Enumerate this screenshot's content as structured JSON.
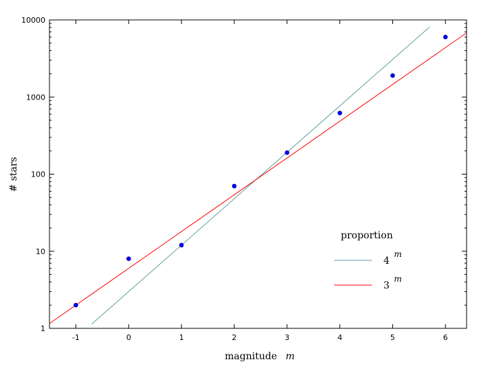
{
  "chart_data": {
    "type": "scatter",
    "xlabel": "magnitude",
    "xlabel_var": "m",
    "ylabel": "# stars",
    "xlim": [
      -1.5,
      6.4
    ],
    "ylim": [
      1,
      10000
    ],
    "yscale": "log",
    "x_ticks": [
      -1,
      0,
      1,
      2,
      3,
      4,
      5,
      6
    ],
    "x_tick_labels": [
      "-1",
      "0",
      "1",
      "2",
      "3",
      "4",
      "5",
      "6"
    ],
    "y_ticks": [
      1,
      10,
      100,
      1000,
      10000
    ],
    "y_tick_labels": [
      "1",
      "10",
      "100",
      "1000",
      "10000"
    ],
    "grid": false,
    "points": {
      "color": "#0000ff",
      "x": [
        -1,
        0,
        1,
        2,
        3,
        4,
        5,
        6
      ],
      "y": [
        2,
        8,
        12,
        70,
        190,
        620,
        1900,
        6000
      ]
    },
    "legend": {
      "title": "proportion",
      "placement": "lower-right",
      "entries": [
        {
          "base": "4",
          "exponent": "m",
          "color": "#5f9ea0"
        },
        {
          "base": "3",
          "exponent": "m",
          "color": "#ff0000"
        }
      ]
    },
    "lines": [
      {
        "base": 4,
        "coef": 3.0,
        "color": "#5f9ea0",
        "x_range": [
          -0.7,
          5.7
        ]
      },
      {
        "base": 3,
        "coef": 6.0,
        "color": "#ff0000",
        "x_range": [
          -1.5,
          6.4
        ]
      }
    ]
  }
}
